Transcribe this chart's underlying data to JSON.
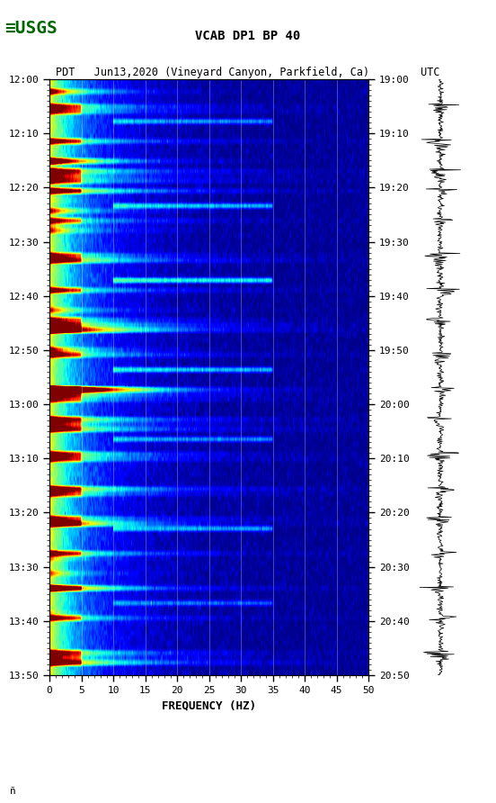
{
  "title_line1": "VCAB DP1 BP 40",
  "title_line2": "PDT   Jun13,2020 (Vineyard Canyon, Parkfield, Ca)        UTC",
  "xlabel": "FREQUENCY (HZ)",
  "freq_min": 0,
  "freq_max": 50,
  "time_labels_left": [
    "12:00",
    "12:10",
    "12:20",
    "12:30",
    "12:40",
    "12:50",
    "13:00",
    "13:10",
    "13:20",
    "13:30",
    "13:40",
    "13:50"
  ],
  "time_labels_right": [
    "19:00",
    "19:10",
    "19:20",
    "19:30",
    "19:40",
    "19:50",
    "20:00",
    "20:10",
    "20:20",
    "20:30",
    "20:40",
    "20:50"
  ],
  "n_time_steps": 120,
  "n_freq_bins": 500,
  "bg_color": "white",
  "colormap": "jet",
  "vertical_lines_x": [
    5,
    10,
    15,
    20,
    25,
    30,
    35,
    40,
    45
  ],
  "low_freq_energy_scale": 3.5,
  "high_freq_decay": 0.15,
  "noise_level": 0.3,
  "seed": 42
}
